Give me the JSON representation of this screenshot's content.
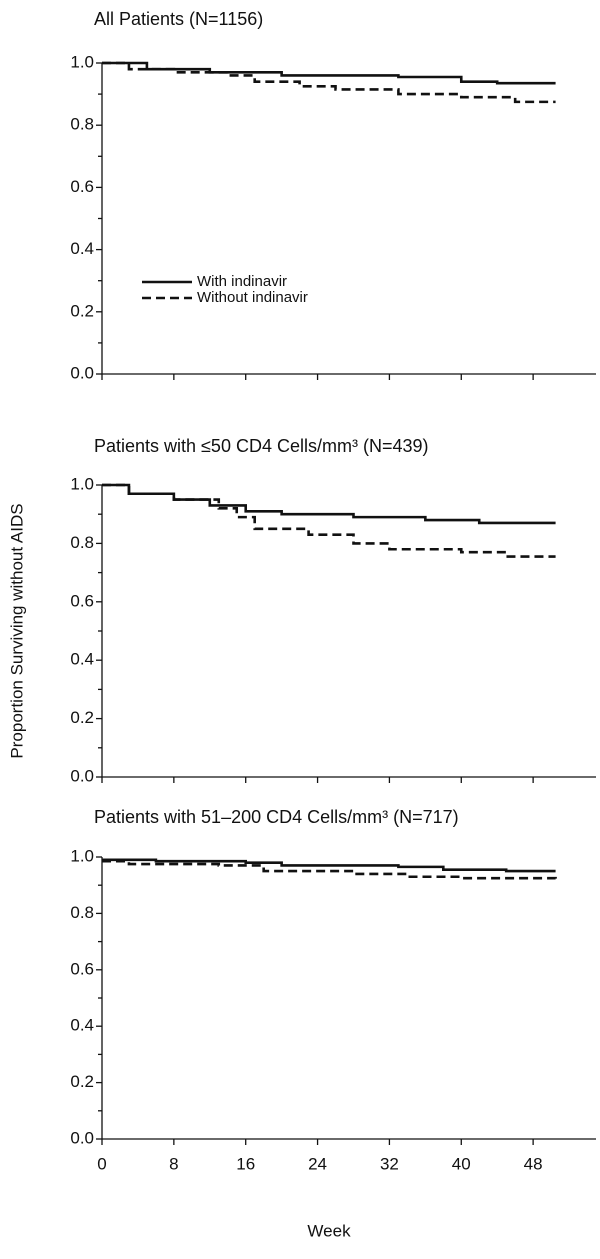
{
  "chart_data": [
    {
      "type": "step",
      "title": "All Patients (N=1156)",
      "xlim": [
        0,
        55
      ],
      "xticks": [
        0,
        8,
        16,
        24,
        32,
        40,
        48
      ],
      "show_xtick_labels": false,
      "ylim": [
        0,
        1
      ],
      "yticks": [
        {
          "value": 0,
          "label": "0.0"
        },
        0.2,
        0.4,
        0.6,
        0.8,
        {
          "value": 1,
          "label": "1.0"
        }
      ],
      "yminorticks": [
        0.1,
        0.3,
        0.5,
        0.7,
        0.9
      ],
      "legend": "lower left",
      "series": [
        {
          "name": "With indinavir",
          "color": "#111111",
          "dash": "solid",
          "x": [
            0,
            5,
            12,
            20,
            33,
            40,
            44,
            50.5
          ],
          "values": [
            1.0,
            0.98,
            0.97,
            0.96,
            0.955,
            0.94,
            0.935,
            0.935
          ]
        },
        {
          "name": "Without indinavir",
          "color": "#111111",
          "dash": "dashed",
          "x": [
            0,
            3,
            8,
            14,
            17,
            22,
            26,
            33,
            40,
            46,
            50.5
          ],
          "values": [
            1.0,
            0.98,
            0.97,
            0.96,
            0.94,
            0.925,
            0.915,
            0.9,
            0.89,
            0.875,
            0.875
          ]
        }
      ]
    },
    {
      "type": "step",
      "title": "Patients with ≤50 CD4 Cells/mm³ (N=439)",
      "ylabel": "Proportion Surviving without AIDS",
      "xlim": [
        0,
        55
      ],
      "xticks": [
        0,
        8,
        16,
        24,
        32,
        40,
        48
      ],
      "show_xtick_labels": false,
      "ylim": [
        0,
        1
      ],
      "yticks": [
        {
          "value": 0,
          "label": "0.0"
        },
        0.2,
        0.4,
        0.6,
        0.8,
        {
          "value": 1,
          "label": "1.0"
        }
      ],
      "yminorticks": [
        0.1,
        0.3,
        0.5,
        0.7,
        0.9
      ],
      "series": [
        {
          "color": "#111111",
          "dash": "solid",
          "x": [
            0,
            3,
            8,
            12,
            16,
            20,
            28,
            36,
            42,
            50.5
          ],
          "values": [
            1.0,
            0.97,
            0.95,
            0.93,
            0.91,
            0.9,
            0.89,
            0.88,
            0.87,
            0.87
          ]
        },
        {
          "color": "#111111",
          "dash": "dashed",
          "x": [
            0,
            3,
            8,
            13,
            15,
            17,
            23,
            28,
            32,
            40,
            45,
            50.5
          ],
          "values": [
            1.0,
            0.97,
            0.95,
            0.92,
            0.89,
            0.85,
            0.83,
            0.8,
            0.78,
            0.77,
            0.755,
            0.755
          ]
        }
      ]
    },
    {
      "type": "step",
      "title": "Patients with 51–200 CD4 Cells/mm³ (N=717)",
      "xlabel": "Week",
      "xlim": [
        0,
        55
      ],
      "xticks": [
        0,
        8,
        16,
        24,
        32,
        40,
        48
      ],
      "show_xtick_labels": true,
      "ylim": [
        0,
        1
      ],
      "yticks": [
        {
          "value": 0,
          "label": "0.0"
        },
        0.2,
        0.4,
        0.6,
        0.8,
        {
          "value": 1,
          "label": "1.0"
        }
      ],
      "yminorticks": [
        0.1,
        0.3,
        0.5,
        0.7,
        0.9
      ],
      "series": [
        {
          "color": "#111111",
          "dash": "solid",
          "x": [
            0,
            6,
            16,
            20,
            33,
            38,
            45,
            50.5
          ],
          "values": [
            0.99,
            0.985,
            0.98,
            0.97,
            0.965,
            0.955,
            0.95,
            0.95
          ]
        },
        {
          "color": "#111111",
          "dash": "dashed",
          "x": [
            0,
            3,
            13,
            18,
            28,
            34,
            40,
            50.5
          ],
          "values": [
            0.985,
            0.975,
            0.97,
            0.95,
            0.94,
            0.93,
            0.925,
            0.92
          ]
        }
      ]
    }
  ]
}
